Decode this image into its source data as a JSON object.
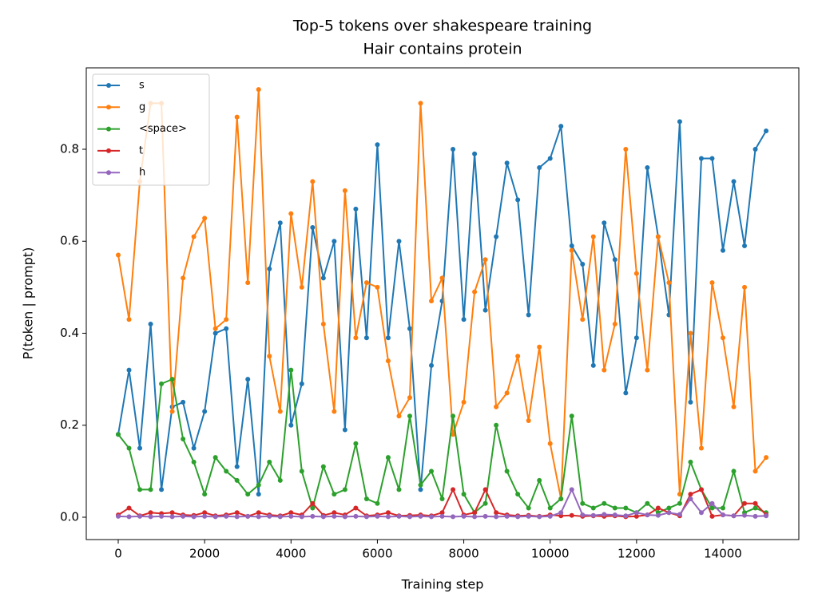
{
  "chart_data": {
    "type": "line",
    "title": "Top-5 tokens over shakespeare training",
    "subtitle": "Hair contains protein",
    "x_label": "Training step",
    "y_label": "P(token | prompt)",
    "xlim": [
      -740,
      15757
    ],
    "ylim": [
      -0.0486,
      0.977
    ],
    "xticks": [
      0,
      2000,
      4000,
      6000,
      8000,
      10000,
      12000,
      14000
    ],
    "yticks": [
      {
        "value": 0,
        "label": "0.0"
      },
      0.2,
      0.4,
      0.6,
      0.8
    ],
    "legend": "upper left",
    "x": [
      0,
      250,
      500,
      750,
      1000,
      1250,
      1500,
      1750,
      2000,
      2250,
      2500,
      2750,
      3000,
      3250,
      3500,
      3750,
      4000,
      4250,
      4500,
      4750,
      5000,
      5250,
      5500,
      5750,
      6000,
      6250,
      6500,
      6750,
      7000,
      7250,
      7500,
      7750,
      8000,
      8250,
      8500,
      8750,
      9000,
      9250,
      9500,
      9750,
      10000,
      10250,
      10500,
      10750,
      11000,
      11250,
      11500,
      11750,
      12000,
      12250,
      12500,
      12750,
      13000,
      13250,
      13500,
      13750,
      14000,
      14250,
      14500,
      14750,
      15000
    ],
    "series": [
      {
        "name": "s",
        "color": "#1f77b4",
        "values": [
          0.18,
          0.32,
          0.15,
          0.42,
          0.06,
          0.24,
          0.25,
          0.15,
          0.23,
          0.4,
          0.41,
          0.11,
          0.3,
          0.05,
          0.54,
          0.64,
          0.2,
          0.29,
          0.63,
          0.52,
          0.6,
          0.19,
          0.67,
          0.39,
          0.81,
          0.39,
          0.6,
          0.41,
          0.06,
          0.33,
          0.47,
          0.8,
          0.43,
          0.79,
          0.45,
          0.61,
          0.77,
          0.69,
          0.44,
          0.76,
          0.78,
          0.85,
          0.59,
          0.55,
          0.33,
          0.64,
          0.56,
          0.27,
          0.39,
          0.76,
          0.61,
          0.44,
          0.86,
          0.25,
          0.78,
          0.78,
          0.58,
          0.73,
          0.59,
          0.8,
          0.84
        ]
      },
      {
        "name": "g",
        "color": "#ff7f0e",
        "values": [
          0.57,
          0.43,
          0.73,
          0.9,
          0.9,
          0.23,
          0.52,
          0.61,
          0.65,
          0.41,
          0.43,
          0.87,
          0.51,
          0.93,
          0.35,
          0.23,
          0.66,
          0.5,
          0.73,
          0.42,
          0.23,
          0.71,
          0.39,
          0.51,
          0.5,
          0.34,
          0.22,
          0.26,
          0.9,
          0.47,
          0.52,
          0.18,
          0.25,
          0.49,
          0.56,
          0.24,
          0.27,
          0.35,
          0.21,
          0.37,
          0.16,
          0.04,
          0.58,
          0.43,
          0.61,
          0.32,
          0.42,
          0.8,
          0.53,
          0.32,
          0.61,
          0.51,
          0.05,
          0.4,
          0.15,
          0.51,
          0.39,
          0.24,
          0.5,
          0.1,
          0.13
        ]
      },
      {
        "name": "<space>",
        "color": "#2ca02c",
        "values": [
          0.18,
          0.15,
          0.06,
          0.06,
          0.29,
          0.3,
          0.17,
          0.12,
          0.05,
          0.13,
          0.1,
          0.08,
          0.05,
          0.07,
          0.12,
          0.08,
          0.32,
          0.1,
          0.02,
          0.11,
          0.05,
          0.06,
          0.16,
          0.04,
          0.03,
          0.13,
          0.06,
          0.22,
          0.07,
          0.1,
          0.04,
          0.22,
          0.05,
          0.01,
          0.03,
          0.2,
          0.1,
          0.05,
          0.02,
          0.08,
          0.02,
          0.04,
          0.22,
          0.03,
          0.02,
          0.03,
          0.02,
          0.02,
          0.01,
          0.03,
          0.01,
          0.02,
          0.03,
          0.12,
          0.06,
          0.02,
          0.02,
          0.1,
          0.01,
          0.02,
          0.01
        ]
      },
      {
        "name": "t",
        "color": "#d62728",
        "values": [
          0.005,
          0.02,
          0.003,
          0.01,
          0.008,
          0.01,
          0.005,
          0.004,
          0.01,
          0.003,
          0.005,
          0.01,
          0.002,
          0.01,
          0.005,
          0.003,
          0.01,
          0.005,
          0.03,
          0.004,
          0.01,
          0.005,
          0.02,
          0.003,
          0.005,
          0.01,
          0.003,
          0.004,
          0.005,
          0.003,
          0.01,
          0.06,
          0.005,
          0.01,
          0.06,
          0.01,
          0.005,
          0.003,
          0.004,
          0.002,
          0.005,
          0.003,
          0.004,
          0.002,
          0.003,
          0.002,
          0.003,
          0.001,
          0.002,
          0.005,
          0.02,
          0.01,
          0.003,
          0.05,
          0.06,
          0.002,
          0.005,
          0.003,
          0.03,
          0.03,
          0.005
        ]
      },
      {
        "name": "h",
        "color": "#9467bd",
        "values": [
          0.002,
          0.001,
          0.002,
          0.001,
          0.002,
          0.001,
          0.002,
          0.001,
          0.002,
          0.001,
          0.002,
          0.001,
          0.002,
          0.001,
          0.002,
          0.001,
          0.002,
          0.001,
          0.002,
          0.001,
          0.002,
          0.001,
          0.002,
          0.001,
          0.002,
          0.001,
          0.002,
          0.001,
          0.002,
          0.001,
          0.002,
          0.001,
          0.002,
          0.001,
          0.002,
          0.001,
          0.002,
          0.001,
          0.002,
          0.001,
          0.002,
          0.01,
          0.06,
          0.005,
          0.004,
          0.006,
          0.005,
          0.003,
          0.01,
          0.005,
          0.004,
          0.01,
          0.006,
          0.04,
          0.01,
          0.03,
          0.005,
          0.003,
          0.004,
          0.002,
          0.003
        ]
      }
    ]
  }
}
